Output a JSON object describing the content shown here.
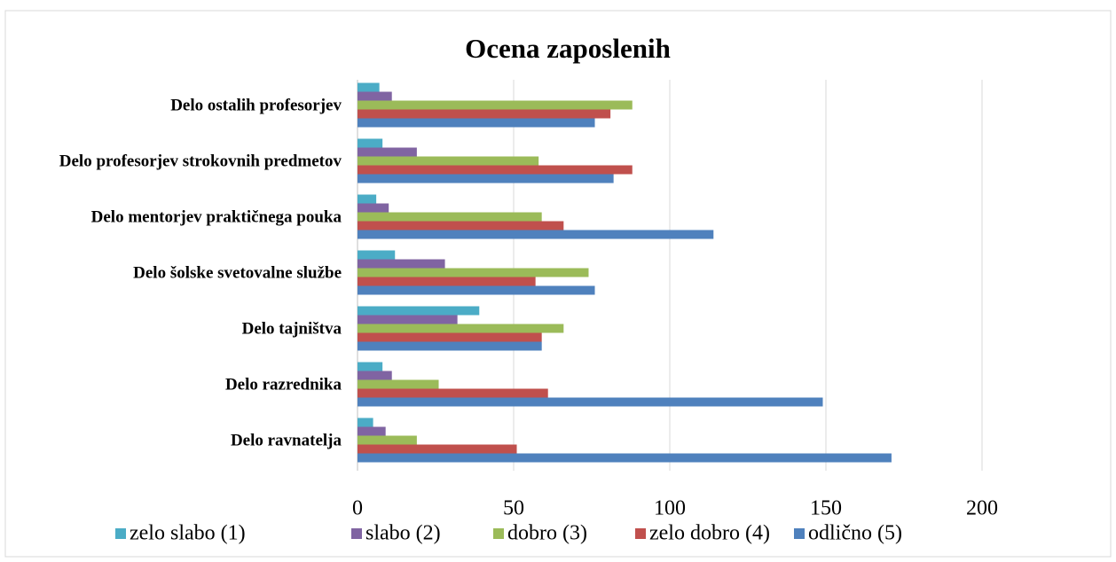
{
  "chart_data": {
    "type": "bar",
    "orientation": "horizontal",
    "title": "Ocena zaposlenih",
    "categories": [
      "Delo ostalih profesorjev",
      "Delo profesorjev strokovnih predmetov",
      "Delo mentorjev praktičnega pouka",
      "Delo šolske svetovalne službe",
      "Delo tajništva",
      "Delo razrednika",
      "Delo ravnatelja"
    ],
    "series": [
      {
        "name": "zelo slabo (1)",
        "color": "#4bacc6",
        "values": [
          7,
          8,
          6,
          12,
          39,
          8,
          5
        ]
      },
      {
        "name": "slabo (2)",
        "color": "#8064a2",
        "values": [
          11,
          19,
          10,
          28,
          32,
          11,
          9
        ]
      },
      {
        "name": "dobro (3)",
        "color": "#9bbb59",
        "values": [
          88,
          58,
          59,
          74,
          66,
          26,
          19
        ]
      },
      {
        "name": "zelo dobro (4)",
        "color": "#c0504d",
        "values": [
          81,
          88,
          66,
          57,
          59,
          61,
          51
        ]
      },
      {
        "name": "odlično (5)",
        "color": "#4f81bd",
        "values": [
          76,
          82,
          114,
          76,
          59,
          149,
          171
        ]
      }
    ],
    "xlim": [
      0,
      200
    ],
    "xticks": [
      0,
      50,
      100,
      150,
      200
    ],
    "grid": true
  }
}
